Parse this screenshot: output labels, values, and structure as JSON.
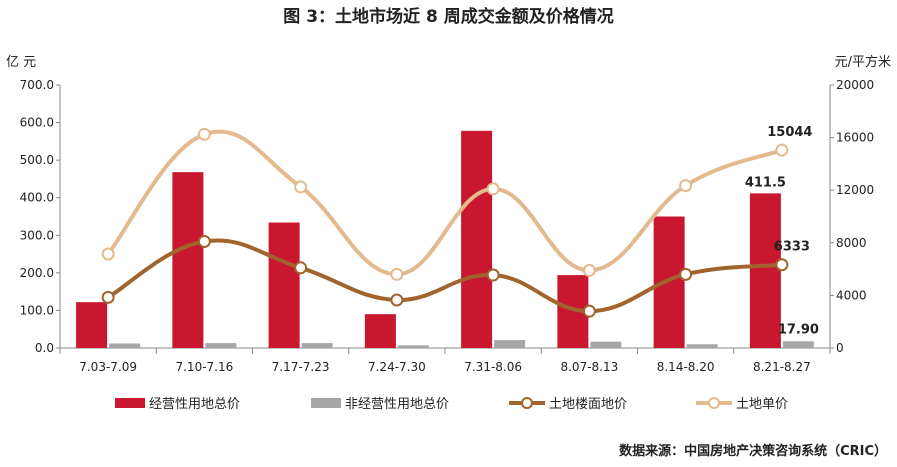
{
  "title": "图 3：土地市场近 8 周成交金额及价格情况",
  "source": "数据来源：中国房地产决策咨询系统（CRIC）",
  "colors": {
    "operating_bar": "#c8172e",
    "non_operating_bar": "#a6a6a6",
    "floor_price_line": "#a0642c",
    "unit_price_line": "#e3b98e"
  },
  "chart_data": {
    "type": "bar",
    "categories": [
      "7.03-7.09",
      "7.10-7.16",
      "7.17-7.23",
      "7.24-7.30",
      "7.31-8.06",
      "8.07-8.13",
      "8.14-8.20",
      "8.21-8.27"
    ],
    "y_left": {
      "unit_label": "亿 元",
      "ylim": [
        0,
        700
      ],
      "ticks": [
        "700.0",
        "600.0",
        "500.0",
        "400.0",
        "300.0",
        "200.0",
        "100.0",
        "0.0"
      ]
    },
    "y_right": {
      "unit_label": "元/平方米",
      "ylim": [
        0,
        20000
      ],
      "ticks": [
        "20000",
        "16000",
        "12000",
        "8000",
        "4000",
        "0"
      ]
    },
    "grid": false,
    "legend_position": "bottom",
    "series": [
      {
        "name": "经营性用地总价",
        "kind": "bar",
        "axis": "left",
        "values": [
          122,
          468,
          334,
          90,
          578,
          194,
          350,
          411.5
        ]
      },
      {
        "name": "非经营性用地总价",
        "kind": "bar",
        "axis": "left",
        "values": [
          12,
          13,
          13,
          7,
          21,
          17,
          10,
          17.9
        ]
      },
      {
        "name": "土地楼面地价",
        "kind": "line",
        "axis": "right",
        "values": [
          3850,
          8100,
          6100,
          3650,
          5550,
          2800,
          5600,
          6333
        ]
      },
      {
        "name": "土地单价",
        "kind": "line",
        "axis": "right",
        "values": [
          7150,
          16250,
          12250,
          5600,
          12100,
          5900,
          12350,
          15044
        ]
      }
    ],
    "data_labels": [
      {
        "series": 0,
        "index": 7,
        "text": "411.5"
      },
      {
        "series": 1,
        "index": 7,
        "text": "17.90"
      },
      {
        "series": 2,
        "index": 7,
        "text": "6333"
      },
      {
        "series": 3,
        "index": 7,
        "text": "15044"
      }
    ]
  }
}
